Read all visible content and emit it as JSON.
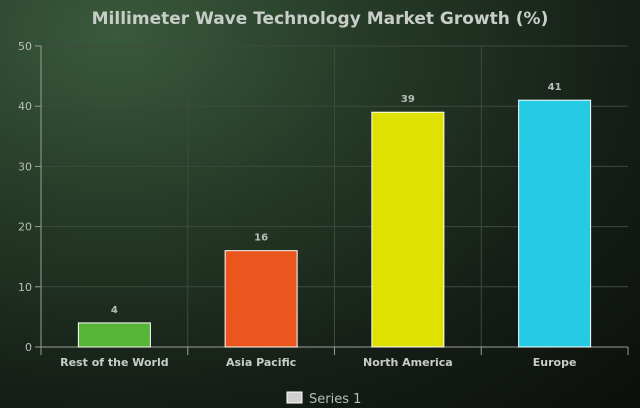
{
  "chart_data": {
    "type": "bar",
    "title": "Millimeter Wave Technology Market Growth (%)",
    "categories": [
      "Rest of the World",
      "Asia Pacific",
      "North America",
      "Europe"
    ],
    "series": [
      {
        "name": "Series 1",
        "values": [
          4,
          16,
          39,
          41
        ],
        "colors": [
          "#56b537",
          "#ea561e",
          "#dfe200",
          "#25cbe5"
        ]
      }
    ],
    "xlabel": "",
    "ylabel": "",
    "ylim": [
      0,
      50
    ],
    "yticks": [
      0,
      10,
      20,
      30,
      40,
      50
    ],
    "grid": true,
    "legend_position": "bottom-center",
    "show_data_labels": true
  }
}
